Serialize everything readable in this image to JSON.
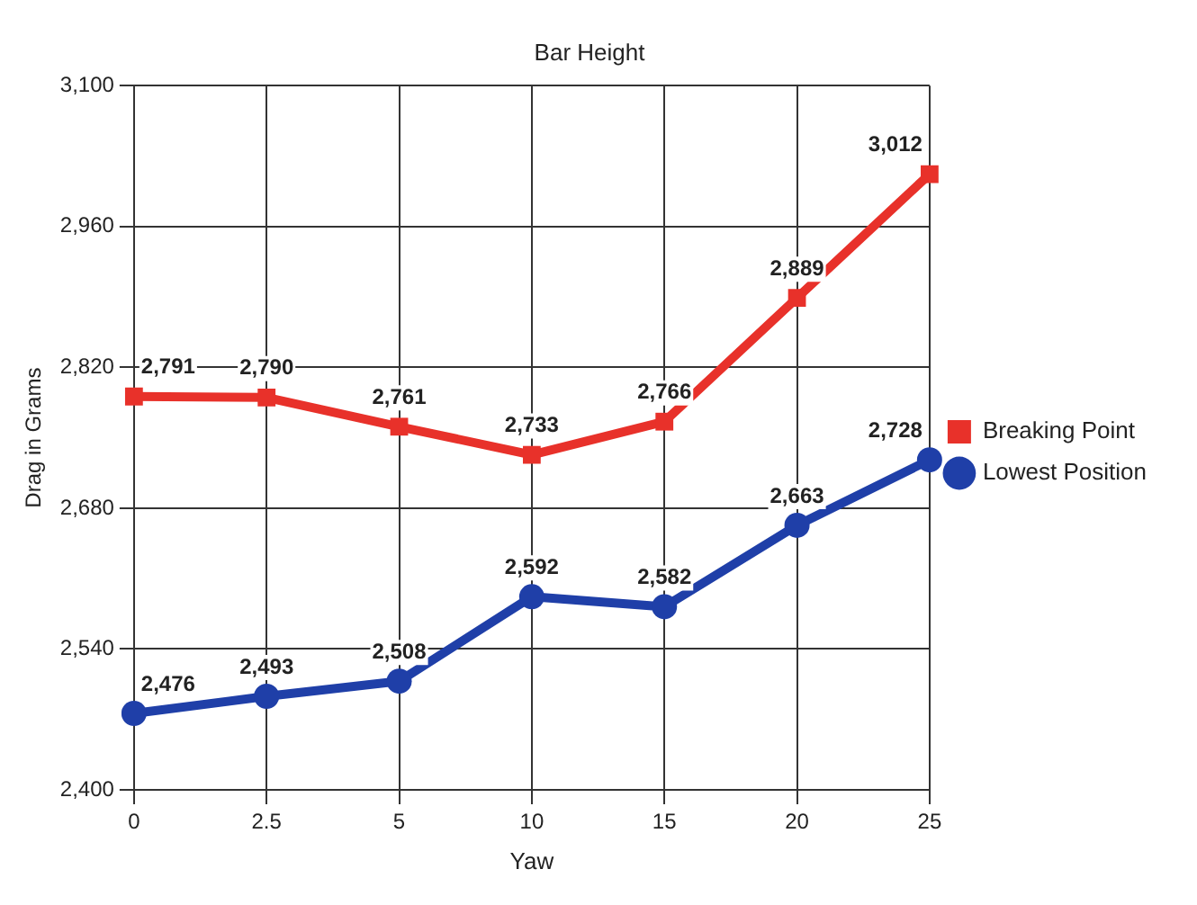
{
  "chart_data": {
    "type": "line",
    "title": "Bar Height",
    "xlabel": "Yaw",
    "ylabel": "Drag in Grams",
    "categories": [
      "0",
      "2.5",
      "5",
      "10",
      "15",
      "20",
      "25"
    ],
    "series": [
      {
        "name": "Breaking Point",
        "color": "#e8312a",
        "marker": "square",
        "values": [
          2791,
          2790,
          2761,
          2733,
          2766,
          2889,
          3012
        ],
        "value_labels": [
          "2,791",
          "2,790",
          "2,761",
          "2,733",
          "2,766",
          "2,889",
          "3,012"
        ]
      },
      {
        "name": "Lowest Position",
        "color": "#1f3fa8",
        "marker": "circle",
        "values": [
          2476,
          2493,
          2508,
          2592,
          2582,
          2663,
          2728
        ],
        "value_labels": [
          "2,476",
          "2,493",
          "2,508",
          "2,592",
          "2,582",
          "2,663",
          "2,728"
        ]
      }
    ],
    "ylim": [
      2400,
      3100
    ],
    "yticks": [
      {
        "value": 2400,
        "label": "2,400"
      },
      {
        "value": 2540,
        "label": "2,540"
      },
      {
        "value": 2680,
        "label": "2,680"
      },
      {
        "value": 2820,
        "label": "2,820"
      },
      {
        "value": 2960,
        "label": "2,960"
      },
      {
        "value": 3100,
        "label": "3,100"
      }
    ],
    "grid": true,
    "legend": "right",
    "line_style": "solid"
  }
}
